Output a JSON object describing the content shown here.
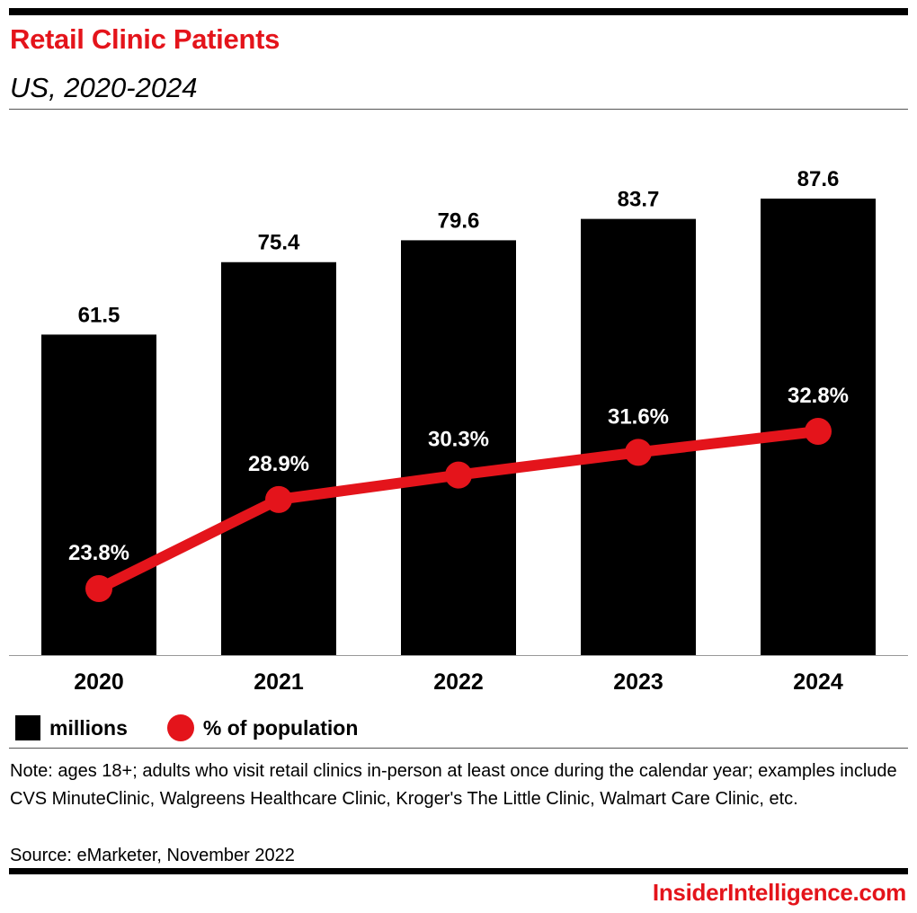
{
  "header": {
    "title": "Retail Clinic Patients",
    "subtitle": "US, 2020-2024"
  },
  "colors": {
    "bar": "#000000",
    "line": "#e4141b",
    "accent": "#e4141b"
  },
  "chart_data": {
    "type": "bar",
    "categories": [
      "2020",
      "2021",
      "2022",
      "2023",
      "2024"
    ],
    "series": [
      {
        "name": "millions",
        "type": "bar",
        "values": [
          61.5,
          75.4,
          79.6,
          83.7,
          87.6
        ],
        "labels": [
          "61.5",
          "75.4",
          "79.6",
          "83.7",
          "87.6"
        ]
      },
      {
        "name": "% of population",
        "type": "line",
        "values": [
          23.8,
          28.9,
          30.3,
          31.6,
          32.8
        ],
        "labels": [
          "23.8%",
          "28.9%",
          "30.3%",
          "31.6%",
          "32.8%"
        ]
      }
    ],
    "grid": false,
    "legend_position": "bottom-left"
  },
  "legend": {
    "bar_label": "millions",
    "line_label": "% of population"
  },
  "footer": {
    "note": "Note: ages 18+; adults who visit retail clinics in-person at least once during the calendar year; examples include CVS MinuteClinic, Walgreens Healthcare Clinic, Kroger's The Little Clinic, Walmart Care Clinic, etc.",
    "source": "Source: eMarketer, November 2022",
    "brand": "InsiderIntelligence.com"
  }
}
